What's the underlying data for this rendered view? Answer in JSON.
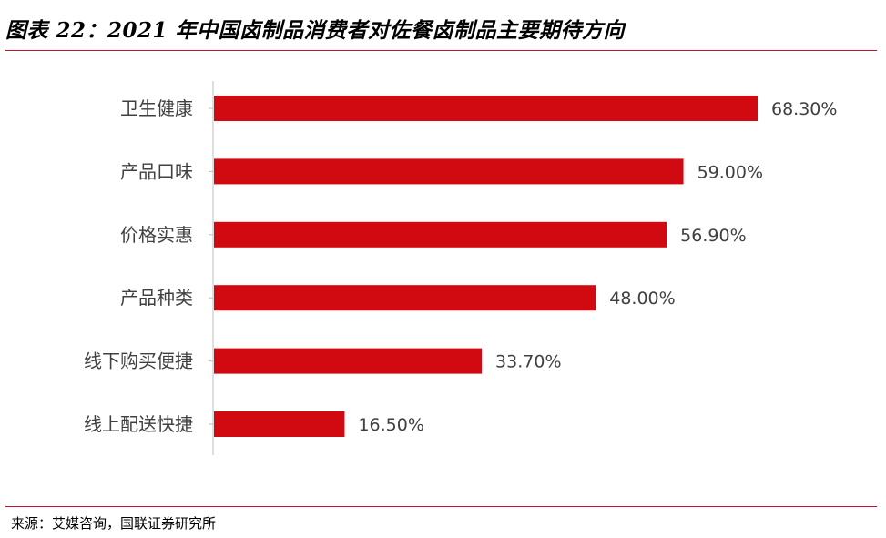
{
  "page": {
    "title": "图表 22：2021 年中国卤制品消费者对佐餐卤制品主要期待方向",
    "source": "来源：艾媒咨询，国联证券研究所"
  },
  "colors": {
    "bar": "#d10a11",
    "accent_rule": "#c8102e",
    "axis": "#bfbfbf",
    "label_text": "#404040"
  },
  "chart_data": {
    "type": "bar",
    "orientation": "horizontal",
    "categories": [
      "卫生健康",
      "产品口味",
      "价格实惠",
      "产品种类",
      "线下购买便捷",
      "线上配送快捷"
    ],
    "values": [
      68.3,
      59.0,
      56.9,
      48.0,
      33.7,
      16.5
    ],
    "value_labels": [
      "68.30%",
      "59.00%",
      "56.90%",
      "48.00%",
      "33.70%",
      "16.50%"
    ],
    "value_unit": "%",
    "xlim": [
      0,
      68.3
    ],
    "grid": false,
    "legend": "none"
  }
}
